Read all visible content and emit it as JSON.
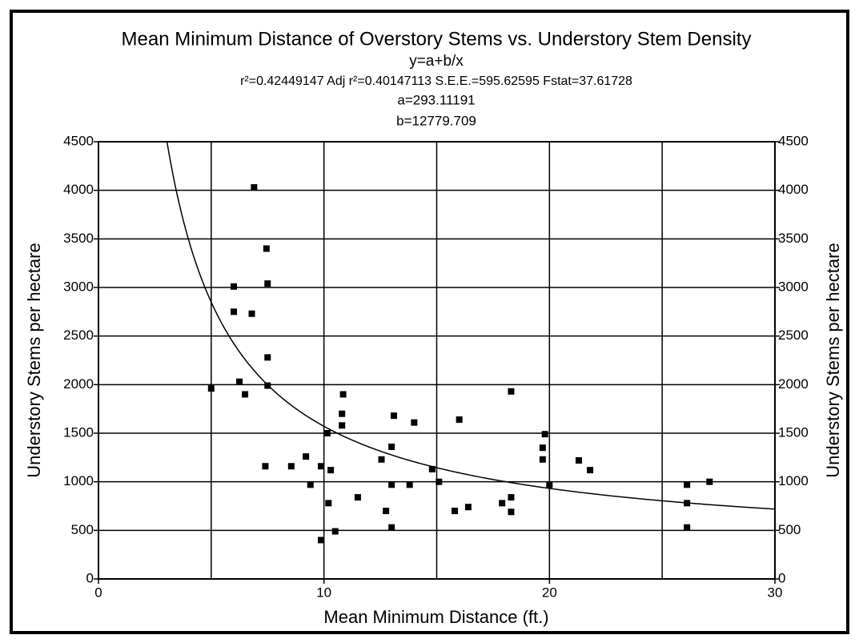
{
  "chart_data": {
    "type": "scatter",
    "title": "Mean Minimum Distance of Overstory Stems vs. Understory Stem Density",
    "subtitle": "y=a+b/x",
    "stats": "r²=0.42449147  Adj r²=0.40147113  S.E.E.=595.62595  Fstat=37.61728",
    "a": {
      "value": 293.11191,
      "label": "a=293.11191"
    },
    "b": {
      "value": 12779.709,
      "label": "b=12779.709"
    },
    "xlabel": "Mean Minimum Distance (ft.)",
    "ylabel": "Understory Stems per hectare",
    "y2label": "Understory Stems per hectare",
    "xlim": [
      0,
      30
    ],
    "xticks": [
      0,
      10,
      20,
      30
    ],
    "x_minor_grid": [
      5,
      15,
      25
    ],
    "ylim": [
      0,
      4500
    ],
    "yticks": [
      0,
      500,
      1000,
      1500,
      2000,
      2500,
      3000,
      3500,
      4000,
      4500
    ],
    "grid": true,
    "color": "#000000",
    "x": [
      5.0,
      6.0,
      6.0,
      6.25,
      6.5,
      6.8,
      6.9,
      7.45,
      7.5,
      7.5,
      7.5,
      7.4,
      8.55,
      9.2,
      9.4,
      9.87,
      9.87,
      10.15,
      10.2,
      10.3,
      10.5,
      10.8,
      10.8,
      10.85,
      11.5,
      12.55,
      12.75,
      13.0,
      13.0,
      13.0,
      13.1,
      13.8,
      14.0,
      14.8,
      15.1,
      15.8,
      16.0,
      16.4,
      17.9,
      18.3,
      18.3,
      18.3,
      19.7,
      19.7,
      19.8,
      20.0,
      21.3,
      21.8,
      26.1,
      26.1,
      26.1,
      27.1
    ],
    "values": [
      1960,
      3010,
      2750,
      2030,
      1900,
      2730,
      4030,
      3400,
      3040,
      2280,
      1990,
      1160,
      1160,
      1260,
      970,
      1160,
      400,
      1500,
      780,
      1120,
      490,
      1700,
      1580,
      1900,
      840,
      1230,
      700,
      530,
      970,
      1360,
      1680,
      970,
      1610,
      1130,
      1000,
      700,
      1640,
      740,
      780,
      1930,
      840,
      690,
      1350,
      1230,
      1490,
      970,
      1220,
      1120,
      970,
      780,
      530,
      1000
    ]
  }
}
